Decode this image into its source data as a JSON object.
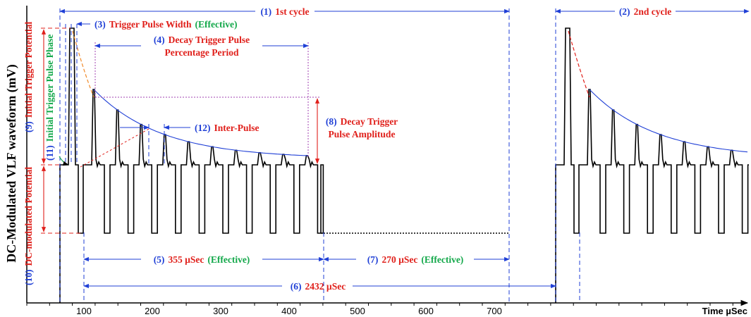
{
  "axis": {
    "x_title": "Time µSec",
    "y_title": "DC-Modulated VLF waveform (mV)",
    "x_ticks": [
      "100",
      "200",
      "300",
      "400",
      "500",
      "600",
      "700"
    ]
  },
  "labels": {
    "l1": {
      "num": "(1)",
      "text": "1st cycle"
    },
    "l2": {
      "num": "(2)",
      "text": "2nd cycle"
    },
    "l3": {
      "num": "(3)",
      "text": "Trigger Pulse Width",
      "extra": "(Effective)"
    },
    "l4": {
      "num": "(4)",
      "line1": "Decay Trigger Pulse",
      "line2": "Percentage Period"
    },
    "l5": {
      "num": "(5)",
      "text": "355 µSec",
      "extra": "(Effective)"
    },
    "l6": {
      "num": "(6)",
      "text": "2432 µSec"
    },
    "l7": {
      "num": "(7)",
      "text": "270 µSec",
      "extra": "(Effective)"
    },
    "l8": {
      "num": "(8)",
      "line1": "Decay Trigger",
      "line2": "Pulse Amplitude"
    },
    "l9": {
      "num": "(9)",
      "text": "Initial Trigger Potential"
    },
    "l10": {
      "num": "(10)",
      "text": "DC-modulated Potential"
    },
    "l11": {
      "num": "(11)",
      "text": "Initial Trigger Pulse Phase"
    },
    "l12": {
      "num": "(12)",
      "text": "Inter-Pulse"
    }
  },
  "colors": {
    "number": "#1f3fd6",
    "text": "#e0201b",
    "effective": "#13a84a",
    "waveform": "#000000"
  }
}
